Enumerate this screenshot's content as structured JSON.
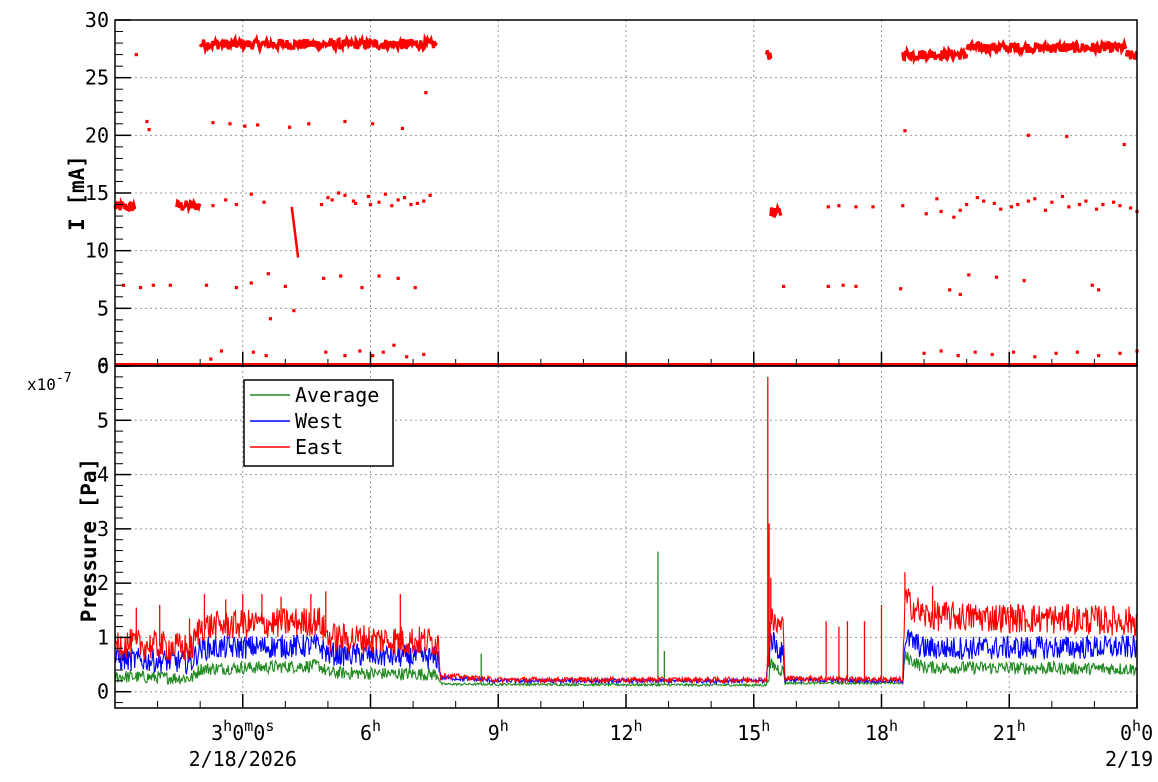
{
  "chart_data": [
    {
      "type": "scatter",
      "ylabel": "I [mA]",
      "ylim": [
        0,
        30
      ],
      "yticks": [
        0,
        5,
        10,
        15,
        20,
        25,
        30
      ],
      "x_unit": "hours since 0h 2/18/2026",
      "xlim": [
        0,
        24
      ],
      "x_tick_labels": [
        {
          "x": 3,
          "label": "3h0m0s"
        },
        {
          "x": 6,
          "label": "6h"
        },
        {
          "x": 9,
          "label": "9h"
        },
        {
          "x": 12,
          "label": "12h"
        },
        {
          "x": 15,
          "label": "15h"
        },
        {
          "x": 18,
          "label": "18h"
        },
        {
          "x": 21,
          "label": "21h"
        },
        {
          "x": 24,
          "label": "0h0"
        }
      ],
      "date_labels": [
        {
          "x": 3,
          "label": "2/18/2026"
        },
        {
          "x": 24,
          "label": "2/19"
        }
      ],
      "grid": true,
      "series": [
        {
          "color": "#ff0000",
          "segments": [
            {
              "x_start": 0.0,
              "x_end": 0.5,
              "y": 13.8
            },
            {
              "x_start": 1.45,
              "x_end": 2.0,
              "y": 13.9
            },
            {
              "x_start": 2.0,
              "x_end": 7.55,
              "y": 27.9
            },
            {
              "x_start": 15.3,
              "x_end": 15.4,
              "y": 27.0
            },
            {
              "x_start": 15.4,
              "x_end": 15.65,
              "y": 13.3
            },
            {
              "x_start": 18.5,
              "x_end": 20.0,
              "y": 27.0
            },
            {
              "x_start": 20.0,
              "x_end": 23.75,
              "y": 27.6
            },
            {
              "x_start": 23.75,
              "x_end": 24.0,
              "y": 26.9
            },
            {
              "x_start": 0.0,
              "x_end": 24.0,
              "y": 0.1
            }
          ],
          "decay_line": {
            "x0": 4.15,
            "y0": 13.8,
            "x1": 4.3,
            "y1": 9.4
          },
          "points": [
            [
              0.5,
              27
            ],
            [
              0.75,
              21.2
            ],
            [
              0.8,
              20.5
            ],
            [
              0.2,
              7
            ],
            [
              0.6,
              6.8
            ],
            [
              0.9,
              7
            ],
            [
              1.3,
              7
            ],
            [
              2.3,
              21.1
            ],
            [
              2.7,
              21
            ],
            [
              3.05,
              20.8
            ],
            [
              3.35,
              20.9
            ],
            [
              4.1,
              20.7
            ],
            [
              4.55,
              21
            ],
            [
              5.4,
              21.2
            ],
            [
              6.05,
              21
            ],
            [
              6.75,
              20.6
            ],
            [
              7.3,
              23.7
            ],
            [
              2.15,
              7
            ],
            [
              2.85,
              6.8
            ],
            [
              3.2,
              7.2
            ],
            [
              3.6,
              8
            ],
            [
              4.0,
              6.9
            ],
            [
              4.2,
              4.8
            ],
            [
              3.65,
              4.1
            ],
            [
              4.9,
              7.6
            ],
            [
              5.3,
              7.8
            ],
            [
              5.8,
              6.8
            ],
            [
              6.2,
              7.8
            ],
            [
              6.65,
              7.6
            ],
            [
              7.05,
              6.8
            ],
            [
              1.8,
              13.8
            ],
            [
              2.3,
              13.9
            ],
            [
              2.6,
              14.4
            ],
            [
              2.85,
              14.0
            ],
            [
              3.2,
              14.9
            ],
            [
              3.5,
              14.2
            ],
            [
              4.85,
              14.0
            ],
            [
              5.1,
              14.4
            ],
            [
              5.4,
              14.8
            ],
            [
              5.65,
              14.1
            ],
            [
              5.95,
              14.7
            ],
            [
              6.2,
              14.2
            ],
            [
              6.5,
              13.9
            ],
            [
              6.8,
              14.6
            ],
            [
              7.1,
              14.1
            ],
            [
              7.4,
              14.8
            ],
            [
              5.0,
              14.6
            ],
            [
              5.25,
              15.0
            ],
            [
              5.6,
              14.3
            ],
            [
              6.0,
              14.0
            ],
            [
              6.35,
              14.9
            ],
            [
              6.65,
              14.4
            ],
            [
              6.95,
              14.0
            ],
            [
              7.25,
              14.3
            ],
            [
              2.25,
              0.6
            ],
            [
              2.5,
              1.3
            ],
            [
              3.25,
              1.2
            ],
            [
              3.55,
              0.9
            ],
            [
              4.95,
              1.2
            ],
            [
              5.4,
              0.9
            ],
            [
              5.75,
              1.3
            ],
            [
              6.05,
              0.9
            ],
            [
              6.3,
              1.2
            ],
            [
              6.55,
              1.8
            ],
            [
              6.85,
              0.8
            ],
            [
              7.25,
              1.0
            ],
            [
              15.7,
              6.9
            ],
            [
              16.75,
              6.9
            ],
            [
              17.1,
              7.0
            ],
            [
              17.4,
              6.9
            ],
            [
              16.75,
              13.8
            ],
            [
              17.0,
              13.9
            ],
            [
              17.4,
              13.8
            ],
            [
              17.8,
              13.8
            ],
            [
              18.45,
              6.7
            ],
            [
              18.55,
              20.4
            ],
            [
              18.5,
              13.9
            ],
            [
              19.05,
              13.2
            ],
            [
              19.4,
              13.4
            ],
            [
              19.7,
              12.9
            ],
            [
              20.0,
              14.0
            ],
            [
              20.4,
              14.3
            ],
            [
              20.8,
              13.6
            ],
            [
              21.2,
              14.0
            ],
            [
              21.6,
              14.5
            ],
            [
              22.0,
              14.2
            ],
            [
              22.4,
              13.8
            ],
            [
              22.8,
              14.3
            ],
            [
              23.2,
              14.0
            ],
            [
              23.6,
              13.9
            ],
            [
              24.0,
              13.4
            ],
            [
              19.3,
              14.5
            ],
            [
              19.85,
              13.5
            ],
            [
              20.25,
              14.6
            ],
            [
              20.65,
              14.1
            ],
            [
              21.05,
              13.8
            ],
            [
              21.45,
              14.3
            ],
            [
              21.85,
              13.5
            ],
            [
              22.25,
              14.7
            ],
            [
              22.65,
              14.0
            ],
            [
              23.05,
              13.6
            ],
            [
              23.45,
              14.2
            ],
            [
              23.85,
              13.7
            ],
            [
              21.45,
              20.0
            ],
            [
              22.35,
              19.9
            ],
            [
              23.7,
              19.2
            ],
            [
              19.6,
              6.6
            ],
            [
              19.85,
              6.2
            ],
            [
              20.05,
              7.9
            ],
            [
              20.7,
              7.7
            ],
            [
              21.35,
              7.4
            ],
            [
              22.95,
              7.0
            ],
            [
              23.1,
              6.6
            ],
            [
              19.0,
              1.1
            ],
            [
              19.4,
              1.3
            ],
            [
              19.8,
              0.9
            ],
            [
              20.2,
              1.2
            ],
            [
              20.6,
              1.0
            ],
            [
              21.1,
              1.2
            ],
            [
              21.6,
              0.8
            ],
            [
              22.1,
              1.1
            ],
            [
              22.6,
              1.2
            ],
            [
              23.1,
              0.9
            ],
            [
              23.6,
              1.1
            ],
            [
              24.0,
              1.3
            ]
          ]
        }
      ]
    },
    {
      "type": "line",
      "ylabel": "Pressure [Pa]",
      "y_exponent": "x10^-7",
      "y_exponent_parts": {
        "base": "x10",
        "power": "-7"
      },
      "ylim": [
        -0.3,
        6.0
      ],
      "yticks": [
        0,
        1,
        2,
        3,
        4,
        5,
        6
      ],
      "xlim": [
        0,
        24
      ],
      "grid": true,
      "legend_position": "top-left",
      "series": [
        {
          "name": "Average",
          "color": "#228b22",
          "levels": [
            [
              0,
              0.28
            ],
            [
              1.8,
              0.25
            ],
            [
              2.0,
              0.42
            ],
            [
              4.8,
              0.48
            ],
            [
              5.0,
              0.35
            ],
            [
              7.6,
              0.32
            ],
            [
              7.65,
              0.14
            ],
            [
              15.3,
              0.12
            ],
            [
              15.4,
              0.5
            ],
            [
              15.7,
              0.38
            ],
            [
              15.75,
              0.16
            ],
            [
              18.5,
              0.16
            ],
            [
              18.55,
              0.65
            ],
            [
              19.0,
              0.45
            ],
            [
              24.0,
              0.42
            ]
          ],
          "noise": 0.12,
          "spikes": [
            [
              8.6,
              0.7
            ],
            [
              12.75,
              2.58
            ],
            [
              12.9,
              0.75
            ],
            [
              15.37,
              1.3
            ]
          ]
        },
        {
          "name": "West",
          "color": "#0000ff",
          "levels": [
            [
              0,
              0.6
            ],
            [
              1.8,
              0.55
            ],
            [
              2.0,
              0.8
            ],
            [
              4.8,
              0.85
            ],
            [
              5.0,
              0.7
            ],
            [
              7.6,
              0.62
            ],
            [
              7.65,
              0.26
            ],
            [
              9.0,
              0.2
            ],
            [
              15.3,
              0.2
            ],
            [
              15.4,
              1.0
            ],
            [
              15.7,
              0.65
            ],
            [
              15.75,
              0.22
            ],
            [
              18.5,
              0.2
            ],
            [
              18.55,
              1.0
            ],
            [
              19.0,
              0.8
            ],
            [
              24.0,
              0.82
            ]
          ],
          "noise": 0.22,
          "spikes": [
            [
              15.37,
              1.3
            ]
          ]
        },
        {
          "name": "East",
          "color": "#ff0000",
          "levels": [
            [
              0,
              0.9
            ],
            [
              1.8,
              0.8
            ],
            [
              2.0,
              1.2
            ],
            [
              4.8,
              1.3
            ],
            [
              5.0,
              1.0
            ],
            [
              7.6,
              0.92
            ],
            [
              7.65,
              0.3
            ],
            [
              9.0,
              0.22
            ],
            [
              15.3,
              0.22
            ],
            [
              15.4,
              1.3
            ],
            [
              15.7,
              1.15
            ],
            [
              15.75,
              0.25
            ],
            [
              18.5,
              0.22
            ],
            [
              18.55,
              1.7
            ],
            [
              19.0,
              1.4
            ],
            [
              24.0,
              1.3
            ]
          ],
          "noise": 0.28,
          "spikes": [
            [
              0.5,
              1.55
            ],
            [
              1.05,
              1.6
            ],
            [
              1.75,
              1.35
            ],
            [
              2.1,
              1.8
            ],
            [
              2.6,
              1.7
            ],
            [
              3.0,
              1.8
            ],
            [
              3.45,
              1.8
            ],
            [
              3.9,
              1.75
            ],
            [
              4.6,
              1.8
            ],
            [
              4.95,
              1.85
            ],
            [
              6.7,
              1.8
            ],
            [
              15.33,
              5.8
            ],
            [
              15.36,
              3.1
            ],
            [
              15.4,
              2.1
            ],
            [
              16.7,
              1.3
            ],
            [
              17.0,
              1.2
            ],
            [
              17.2,
              1.3
            ],
            [
              17.6,
              1.3
            ],
            [
              18.0,
              1.6
            ],
            [
              18.55,
              2.2
            ],
            [
              19.2,
              1.95
            ]
          ]
        }
      ]
    }
  ]
}
